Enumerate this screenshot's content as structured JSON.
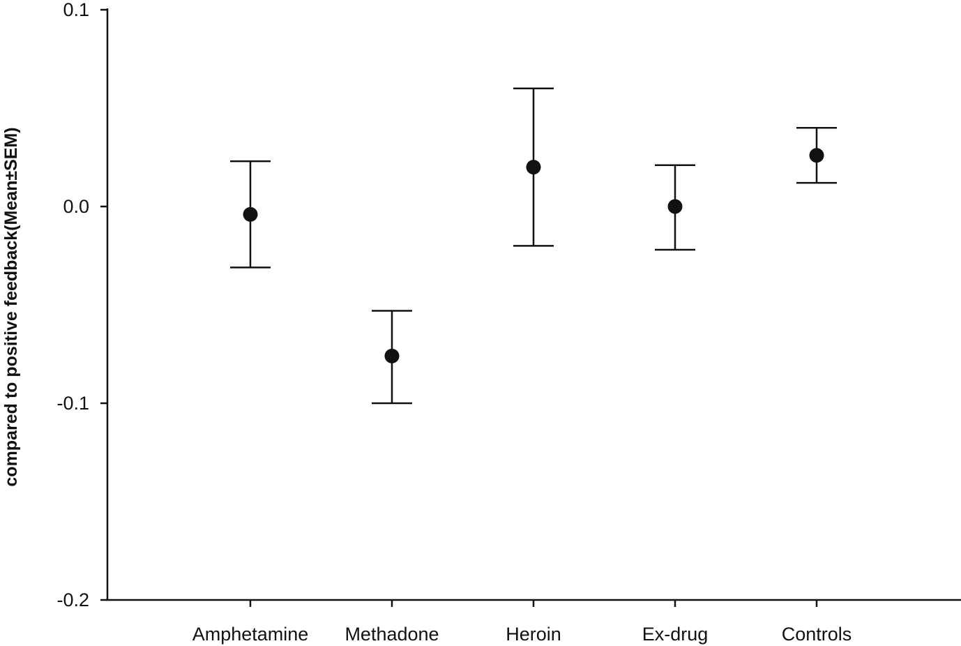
{
  "chart_data": {
    "type": "scatter",
    "title": "",
    "xlabel": "",
    "ylabel": "compared to positive feedback(Mean±SEM)",
    "ylim": [
      -0.2,
      0.1
    ],
    "yticks": [
      "0.1",
      "0.0",
      "-0.1",
      "-0.2"
    ],
    "grid": false,
    "categories": [
      "Amphetamine",
      "Methadone",
      "Heroin",
      "Ex-drug",
      "Controls"
    ],
    "series": [
      {
        "values": [
          -0.004,
          -0.076,
          0.02,
          0.0,
          0.026
        ],
        "error_low": [
          -0.031,
          -0.1,
          -0.02,
          -0.022,
          0.012
        ],
        "error_high": [
          0.023,
          -0.053,
          0.06,
          0.021,
          0.04
        ]
      }
    ]
  }
}
